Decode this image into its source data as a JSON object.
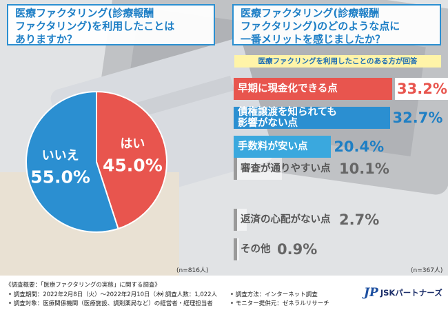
{
  "left_panel": {
    "question_lines": [
      "医療ファクタリング(診療報酬",
      "ファクタリング)を利用したことは",
      "ありますか？"
    ],
    "sample_note": "(n=816人)"
  },
  "right_panel": {
    "question_lines": [
      "医療ファクタリング(診療報酬",
      "ファクタリング)のどのような点に",
      "一番メリットを感じましたか？"
    ],
    "subtitle": "医療ファクリングを利用したことのある方が回答",
    "sample_note": "(n=367人)"
  },
  "chart_data": [
    {
      "type": "pie",
      "slices": [
        {
          "label": "はい",
          "value": 45.0,
          "value_label": "45.0%",
          "color": "#e8554e"
        },
        {
          "label": "いいえ",
          "value": 55.0,
          "value_label": "55.0%",
          "color": "#2b8fd1"
        }
      ]
    },
    {
      "type": "bar",
      "orientation": "horizontal",
      "categories": [
        "早期に現金化できる点",
        "債権譲渡を知られても影響がない点",
        "手数料が安い点",
        "審査が通りやすい点",
        "返済の心配がない点",
        "その他"
      ],
      "category_lines": [
        [
          "早期に現金化できる点"
        ],
        [
          "債権譲渡を知られても",
          "影響がない点"
        ],
        [
          "手数料が安い点"
        ],
        [
          "審査が通りやすい点"
        ],
        [
          "返済の心配がない点"
        ],
        [
          "その他"
        ]
      ],
      "values": [
        33.2,
        32.7,
        20.4,
        10.1,
        2.7,
        0.9
      ],
      "value_labels": [
        "33.2%",
        "32.7%",
        "20.4%",
        "10.1%",
        "2.7%",
        "0.9%"
      ],
      "colors": [
        "#e8554e",
        "#2b8fd1",
        "#3aa8de",
        "#ffffff",
        "#ffffff",
        "#ffffff"
      ]
    }
  ],
  "footer": {
    "survey_title": "《調査概要：「医療ファクタリングの実態」に関する調査》",
    "period": "• 調査期間：2022年2月8日（火）～2022年2月10日（木）",
    "respondents": "• 調査人数：1,022人",
    "method": "• 調査方法：インターネット調査",
    "target": "• 調査対象：医療関係機関（医療施設、調剤薬局など）の経営者・経理担当者",
    "monitor": "• モニター提供元：ゼネラルリサーチ",
    "logo_mark": "JP",
    "logo_name": "JSKパートナーズ"
  },
  "colors": {
    "accent_blue": "#2b8fd1",
    "accent_red": "#e8554e",
    "light_blue": "#3aa8de",
    "subtitle_bg": "#fff4a8"
  }
}
